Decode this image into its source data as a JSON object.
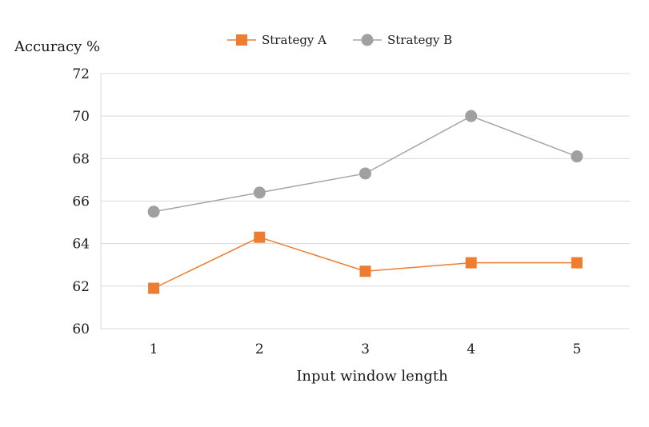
{
  "chart_data": {
    "type": "line",
    "title": "",
    "xlabel": "Input window length",
    "ylabel": "Accuracy %",
    "categories": [
      "1",
      "2",
      "3",
      "4",
      "5"
    ],
    "yticks": [
      "60",
      "62",
      "64",
      "66",
      "68",
      "70",
      "72"
    ],
    "ylim": [
      60,
      72
    ],
    "grid": true,
    "legend_position": "top",
    "series": [
      {
        "name": "Strategy A",
        "marker": "square",
        "color": "#ED7D31",
        "values": [
          61.9,
          64.3,
          62.7,
          63.1,
          63.1
        ]
      },
      {
        "name": "Strategy B",
        "marker": "circle",
        "color": "#A5A5A5",
        "values": [
          65.5,
          66.4,
          67.3,
          70.0,
          68.1
        ]
      }
    ]
  }
}
